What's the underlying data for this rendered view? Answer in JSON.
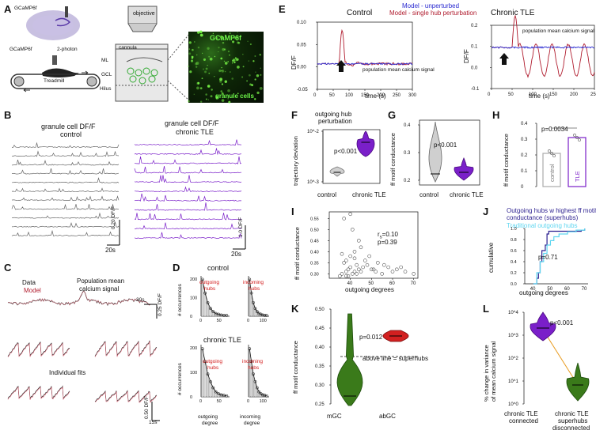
{
  "panels": {
    "A": {
      "letter": "A",
      "gcamp_brain": "GCaMP6f",
      "gcamp_mouse": "GCaMP6f",
      "two_photon": "2-photon",
      "treadmill": "Treadmill",
      "objective": "objective",
      "cannula": "cannula",
      "ml": "ML",
      "gcl": "GCL",
      "hilus": "Hilus",
      "micro_title": "GCaMP6f",
      "micro_sub": "granule cells"
    },
    "B": {
      "letter": "B",
      "left_title_1": "granule cell DF/F",
      "left_title_2": "control",
      "right_title_1": "granule cell DF/F",
      "right_title_2": "chronic TLE",
      "left_scale_y": "0.20 DF/F",
      "left_scale_x": "20s",
      "right_scale_y": "1.0 DF/F",
      "right_scale_x": "20s"
    },
    "C": {
      "letter": "C",
      "data_label": "Data",
      "model_label": "Model",
      "pop_label_1": "Population mean",
      "pop_label_2": "calcium signal",
      "scale_y": "0.25 DF/F",
      "scale_x": "30s",
      "fits_label": "Individual fits",
      "scale_y2": "0.50 DF/F",
      "scale_x2": "15s"
    },
    "D": {
      "letter": "D",
      "control_title": "control",
      "tle_title": "chronic TLE",
      "ylabel": "# occurrences",
      "out_label_1": "outgoing",
      "out_label_2": "hubs",
      "in_label_1": "incoming",
      "in_label_2": "hubs",
      "xlabel_out_1": "outgoing",
      "xlabel_out_2": "degree",
      "xlabel_in_1": "incoming",
      "xlabel_in_2": "degree"
    },
    "E": {
      "letter": "E",
      "control_title": "Control",
      "tle_title": "Chronic TLE",
      "legend_unperturbed": "Model - unperturbed",
      "legend_perturbed": "Model - single hub perturbation",
      "ylabel": "DF/F",
      "xlabel": "time (s)",
      "pop_label": "population mean calcium signal",
      "pop_label_right": "population mean calcium signal"
    },
    "F": {
      "letter": "F",
      "title_1": "outgoing hub",
      "title_2": "perturbation",
      "ylabel": "trajectory deviation",
      "pvalue": "p<0.001",
      "cat1": "control",
      "cat2": "chronic TLE"
    },
    "G": {
      "letter": "G",
      "ylabel": "ff motif conductance",
      "pvalue": "p<0.001",
      "cat1": "control",
      "cat2": "chronic TLE"
    },
    "H": {
      "letter": "H",
      "ylabel": "ff motif conductance",
      "pvalue": "p=0.0034",
      "bar1": "control",
      "bar2": "TLE"
    },
    "I": {
      "letter": "I",
      "ylabel": "ff motif conductance",
      "xlabel": "outgoing degrees",
      "rs": "r",
      "rs_sub": "s",
      "rs_val": "=0.10",
      "pval": "p=0.39"
    },
    "J": {
      "letter": "J",
      "legend_1": "Outgoing hubs w highest ff motif",
      "legend_2": "conductance (superhubs)",
      "legend_3": "Traditional outgoing hubs",
      "ylabel": "cumulative",
      "xlabel": "outgoing degrees",
      "pval": "p=0.71"
    },
    "K": {
      "letter": "K",
      "ylabel": "ff motif conductance",
      "pval": "p=0.012",
      "line_label": "above line = superhubs",
      "cat1": "mGC",
      "cat2": "abGC"
    },
    "L": {
      "letter": "L",
      "ylabel_1": "% change in variance",
      "ylabel_2": "of mean calcium signal",
      "pval": "p<0.001",
      "cat1_1": "chronic TLE",
      "cat1_2": "connected",
      "cat2_1": "chronic TLE",
      "cat2_2": "superhubs",
      "cat2_3": "disconnected"
    }
  },
  "colors": {
    "model_red": "#b01c2e",
    "unperturbed_blue": "#2a2ad0",
    "tle_purple": "#7a1fc9",
    "control_gray": "#9a9a9a",
    "green": "#3a7a1a",
    "cyan": "#5fd6f0",
    "navy": "#2b1f8f",
    "red_hub": "#d11818"
  },
  "chart_data": [
    {
      "type": "violin",
      "panel": "F",
      "categories": [
        "control",
        "chronic TLE"
      ],
      "yscale": "log",
      "yticks": [
        "10^-3",
        "10^-2"
      ]
    },
    {
      "type": "violin",
      "panel": "G",
      "categories": [
        "control",
        "chronic TLE"
      ],
      "yticks": [
        0.2,
        0.3,
        0.4
      ]
    },
    {
      "type": "bar",
      "panel": "H",
      "categories": [
        "control",
        "TLE"
      ],
      "values": [
        0.21,
        0.31
      ],
      "ylim": [
        0,
        0.4
      ],
      "yticks": [
        0,
        0.1,
        0.2,
        0.3,
        0.4
      ]
    },
    {
      "type": "scatter",
      "panel": "I",
      "xlabel": "outgoing degrees",
      "ylabel": "ff motif conductance",
      "xticks": [
        40,
        50,
        60,
        70
      ],
      "yticks": [
        0.3,
        0.35,
        0.4,
        0.45,
        0.5,
        0.55
      ],
      "x": [
        36,
        38,
        39,
        40,
        41,
        42,
        43,
        44,
        45,
        37,
        38,
        40,
        42,
        46,
        48,
        50,
        52,
        55,
        58,
        62,
        66,
        70,
        35,
        39,
        43,
        47,
        53,
        60,
        44,
        41,
        37,
        45,
        49,
        51,
        40,
        38,
        42,
        36,
        56,
        64
      ],
      "y": [
        0.3,
        0.31,
        0.32,
        0.33,
        0.3,
        0.31,
        0.34,
        0.32,
        0.31,
        0.35,
        0.36,
        0.38,
        0.4,
        0.33,
        0.34,
        0.32,
        0.31,
        0.3,
        0.33,
        0.32,
        0.31,
        0.3,
        0.29,
        0.29,
        0.3,
        0.36,
        0.35,
        0.31,
        0.45,
        0.5,
        0.55,
        0.42,
        0.38,
        0.32,
        0.57,
        0.29,
        0.37,
        0.39,
        0.34,
        0.33
      ]
    },
    {
      "type": "line",
      "panel": "J",
      "xlabel": "outgoing degrees",
      "ylabel": "cumulative",
      "xticks": [
        40,
        50,
        60,
        70
      ],
      "yticks": [
        0.0,
        0.2,
        0.4,
        0.6,
        0.8,
        1.0
      ],
      "series": [
        {
          "name": "Outgoing hubs w highest ff motif conductance (superhubs)",
          "x": [
            40,
            42,
            43,
            44,
            45,
            47,
            48,
            49,
            50,
            55,
            60,
            66,
            68,
            70
          ],
          "y": [
            0.0,
            0.1,
            0.2,
            0.4,
            0.6,
            0.7,
            0.9,
            0.95,
            0.95,
            0.95,
            0.95,
            0.95,
            0.97,
            1.0
          ]
        },
        {
          "name": "Traditional outgoing hubs",
          "x": [
            40,
            42,
            44,
            46,
            48,
            50,
            52,
            55,
            60,
            65,
            70
          ],
          "y": [
            0.0,
            0.2,
            0.4,
            0.55,
            0.7,
            0.78,
            0.85,
            0.9,
            0.94,
            0.97,
            1.0
          ]
        }
      ]
    },
    {
      "type": "violin",
      "panel": "K",
      "categories": [
        "mGC",
        "abGC"
      ],
      "yticks": [
        0.25,
        0.3,
        0.35,
        0.4,
        0.45,
        0.5
      ]
    },
    {
      "type": "violin",
      "panel": "L",
      "categories": [
        "chronic TLE connected",
        "chronic TLE superhubs disconnected"
      ],
      "yscale": "log",
      "yticks": [
        "10^0",
        "10^1",
        "10^2",
        "10^3",
        "10^4"
      ]
    },
    {
      "type": "histogram",
      "panel": "D",
      "yticks_control": [
        0,
        100,
        200
      ],
      "xticks_out": [
        0,
        50
      ],
      "xticks_in": [
        0,
        100
      ],
      "yticks_tle": [
        0,
        100,
        200
      ]
    }
  ]
}
